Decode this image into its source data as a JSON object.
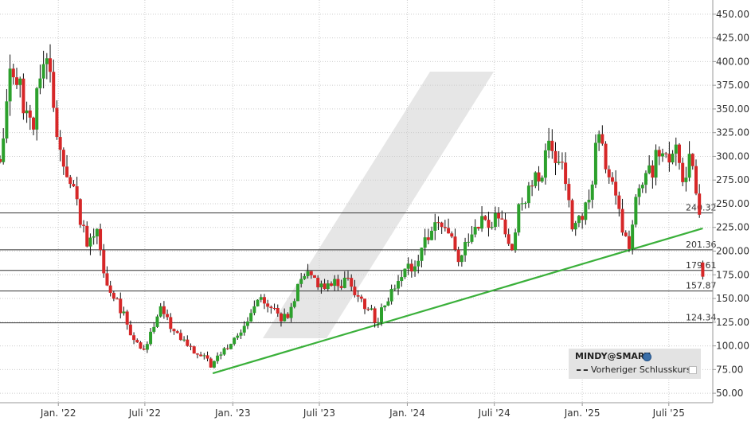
{
  "colors": {
    "up": "#2ca02c",
    "down": "#d62728",
    "trendline": "#3ab03a",
    "grid": "#cccccc",
    "level_line": "#333333",
    "watermark": "#e6e6e6",
    "legend_bg": "#e3e3e3"
  },
  "legend": {
    "title": "MINDY@SMART",
    "title_icon": "globe-icon",
    "entry": "Vorheriger Schlusskurs"
  },
  "chart_data": {
    "type": "candlestick",
    "y_axis": {
      "min": 40,
      "max": 465,
      "position": "right",
      "ticks": [
        "450.00",
        "425.00",
        "400.00",
        "375.00",
        "350.00",
        "325.00",
        "300.00",
        "275.00",
        "250.00",
        "225.00",
        "200.00",
        "175.00",
        "150.00",
        "125.00",
        "100.00",
        "75.00",
        "50.00"
      ]
    },
    "x_axis": {
      "start": "2021-09-01",
      "end": "2025-10-01",
      "ticks": [
        {
          "label": "Jan. '22",
          "date": "2022-01-01"
        },
        {
          "label": "Juli '22",
          "date": "2022-07-01"
        },
        {
          "label": "Jan. '23",
          "date": "2023-01-01"
        },
        {
          "label": "Juli '23",
          "date": "2023-07-01"
        },
        {
          "label": "Jan. '24",
          "date": "2024-01-01"
        },
        {
          "label": "Juli '24",
          "date": "2024-07-01"
        },
        {
          "label": "Jan. '25",
          "date": "2025-01-01"
        },
        {
          "label": "Juli '25",
          "date": "2025-07-01"
        }
      ]
    },
    "grid": true,
    "horizontal_levels": [
      {
        "value": 240.32,
        "label": "240.32"
      },
      {
        "value": 201.36,
        "label": "201.36"
      },
      {
        "value": 179.61,
        "label": "179.61"
      },
      {
        "value": 157.87,
        "label": "157.87"
      },
      {
        "value": 124.34,
        "label": "124.34"
      }
    ],
    "trendline": {
      "from": {
        "date": "2022-11-20",
        "value": 71
      },
      "to": {
        "date": "2025-09-10",
        "value": 224
      }
    },
    "anchors": [
      {
        "date": "2021-09-01",
        "value": 290
      },
      {
        "date": "2021-09-20",
        "value": 390
      },
      {
        "date": "2021-10-15",
        "value": 370
      },
      {
        "date": "2021-11-05",
        "value": 330
      },
      {
        "date": "2021-11-25",
        "value": 380
      },
      {
        "date": "2021-12-10",
        "value": 400
      },
      {
        "date": "2021-12-25",
        "value": 340
      },
      {
        "date": "2022-01-20",
        "value": 270
      },
      {
        "date": "2022-02-10",
        "value": 255
      },
      {
        "date": "2022-03-01",
        "value": 200
      },
      {
        "date": "2022-03-20",
        "value": 230
      },
      {
        "date": "2022-04-10",
        "value": 165
      },
      {
        "date": "2022-05-01",
        "value": 150
      },
      {
        "date": "2022-05-20",
        "value": 130
      },
      {
        "date": "2022-06-10",
        "value": 105
      },
      {
        "date": "2022-06-25",
        "value": 95
      },
      {
        "date": "2022-07-15",
        "value": 115
      },
      {
        "date": "2022-08-05",
        "value": 140
      },
      {
        "date": "2022-08-25",
        "value": 120
      },
      {
        "date": "2022-09-15",
        "value": 110
      },
      {
        "date": "2022-10-10",
        "value": 95
      },
      {
        "date": "2022-11-01",
        "value": 90
      },
      {
        "date": "2022-11-20",
        "value": 78
      },
      {
        "date": "2022-12-10",
        "value": 95
      },
      {
        "date": "2023-01-10",
        "value": 110
      },
      {
        "date": "2023-02-05",
        "value": 130
      },
      {
        "date": "2023-02-25",
        "value": 160
      },
      {
        "date": "2023-03-15",
        "value": 140
      },
      {
        "date": "2023-04-05",
        "value": 135
      },
      {
        "date": "2023-04-25",
        "value": 125
      },
      {
        "date": "2023-05-15",
        "value": 160
      },
      {
        "date": "2023-06-05",
        "value": 175
      },
      {
        "date": "2023-06-25",
        "value": 170
      },
      {
        "date": "2023-07-20",
        "value": 162
      },
      {
        "date": "2023-08-10",
        "value": 168
      },
      {
        "date": "2023-09-01",
        "value": 170
      },
      {
        "date": "2023-09-20",
        "value": 155
      },
      {
        "date": "2023-10-10",
        "value": 140
      },
      {
        "date": "2023-10-30",
        "value": 125
      },
      {
        "date": "2023-11-20",
        "value": 150
      },
      {
        "date": "2023-12-15",
        "value": 175
      },
      {
        "date": "2024-01-10",
        "value": 185
      },
      {
        "date": "2024-02-01",
        "value": 205
      },
      {
        "date": "2024-02-20",
        "value": 220
      },
      {
        "date": "2024-03-10",
        "value": 225
      },
      {
        "date": "2024-04-01",
        "value": 210
      },
      {
        "date": "2024-04-20",
        "value": 185
      },
      {
        "date": "2024-05-10",
        "value": 220
      },
      {
        "date": "2024-06-01",
        "value": 235
      },
      {
        "date": "2024-06-20",
        "value": 225
      },
      {
        "date": "2024-07-15",
        "value": 235
      },
      {
        "date": "2024-08-05",
        "value": 195
      },
      {
        "date": "2024-08-25",
        "value": 250
      },
      {
        "date": "2024-09-15",
        "value": 265
      },
      {
        "date": "2024-10-05",
        "value": 280
      },
      {
        "date": "2024-10-25",
        "value": 310
      },
      {
        "date": "2024-11-10",
        "value": 295
      },
      {
        "date": "2024-11-25",
        "value": 280
      },
      {
        "date": "2024-12-10",
        "value": 225
      },
      {
        "date": "2025-01-01",
        "value": 235
      },
      {
        "date": "2025-01-15",
        "value": 250
      },
      {
        "date": "2025-02-01",
        "value": 320
      },
      {
        "date": "2025-02-20",
        "value": 290
      },
      {
        "date": "2025-03-10",
        "value": 255
      },
      {
        "date": "2025-03-25",
        "value": 225
      },
      {
        "date": "2025-04-08",
        "value": 205
      },
      {
        "date": "2025-04-25",
        "value": 255
      },
      {
        "date": "2025-05-15",
        "value": 275
      },
      {
        "date": "2025-06-05",
        "value": 300
      },
      {
        "date": "2025-06-25",
        "value": 290
      },
      {
        "date": "2025-07-15",
        "value": 310
      },
      {
        "date": "2025-07-30",
        "value": 285
      },
      {
        "date": "2025-08-15",
        "value": 295
      },
      {
        "date": "2025-08-28",
        "value": 260
      },
      {
        "date": "2025-09-05",
        "value": 245
      }
    ],
    "last_candle": {
      "date": "2025-09-10",
      "open": 188,
      "high": 190,
      "low": 170,
      "close": 173
    }
  }
}
